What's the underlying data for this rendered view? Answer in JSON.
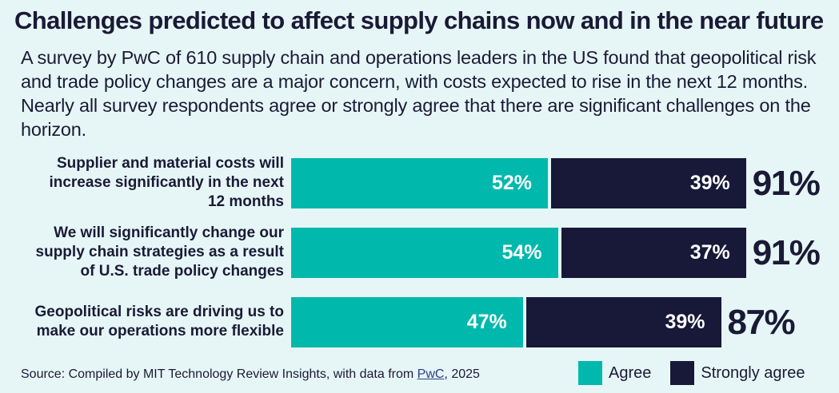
{
  "title": "Challenges predicted to affect supply chains now and in the near future",
  "subtitle": "A survey by PwC of 610 supply chain and operations leaders in the US found that geopolitical risk and trade policy changes are a major concern, with costs expected to rise in the next 12 months. Nearly all survey respondents agree or strongly agree that there are significant challenges on the horizon.",
  "source": {
    "prefix": "Source: Compiled by MIT Technology Review Insights, with data from ",
    "link_text": "PwC",
    "suffix": ", 2025"
  },
  "colors": {
    "agree": "#00b8ac",
    "strongly_agree": "#181838",
    "background": "#e6f6f6"
  },
  "chart_data": {
    "type": "bar",
    "orientation": "horizontal",
    "stacked": true,
    "unit": "%",
    "categories": [
      "Supplier and material costs will increase significantly in the next 12 months",
      "We will significantly change our supply chain strategies as a result of U.S. trade policy changes",
      "Geopolitical risks are driving us to make our operations more flexible"
    ],
    "category_lines": [
      [
        "Supplier and material costs will",
        "increase significantly in the next",
        "12 months"
      ],
      [
        "We will significantly change our",
        "supply chain strategies as a result",
        "of U.S. trade policy changes"
      ],
      [
        "Geopolitical risks are driving us to",
        "make our operations more flexible"
      ]
    ],
    "series": [
      {
        "name": "Agree",
        "values": [
          52,
          54,
          47
        ]
      },
      {
        "name": "Strongly agree",
        "values": [
          39,
          37,
          39
        ]
      }
    ],
    "totals": [
      91,
      91,
      87
    ],
    "legend": [
      "Agree",
      "Strongly agree"
    ],
    "legend_position": "bottom-right"
  }
}
